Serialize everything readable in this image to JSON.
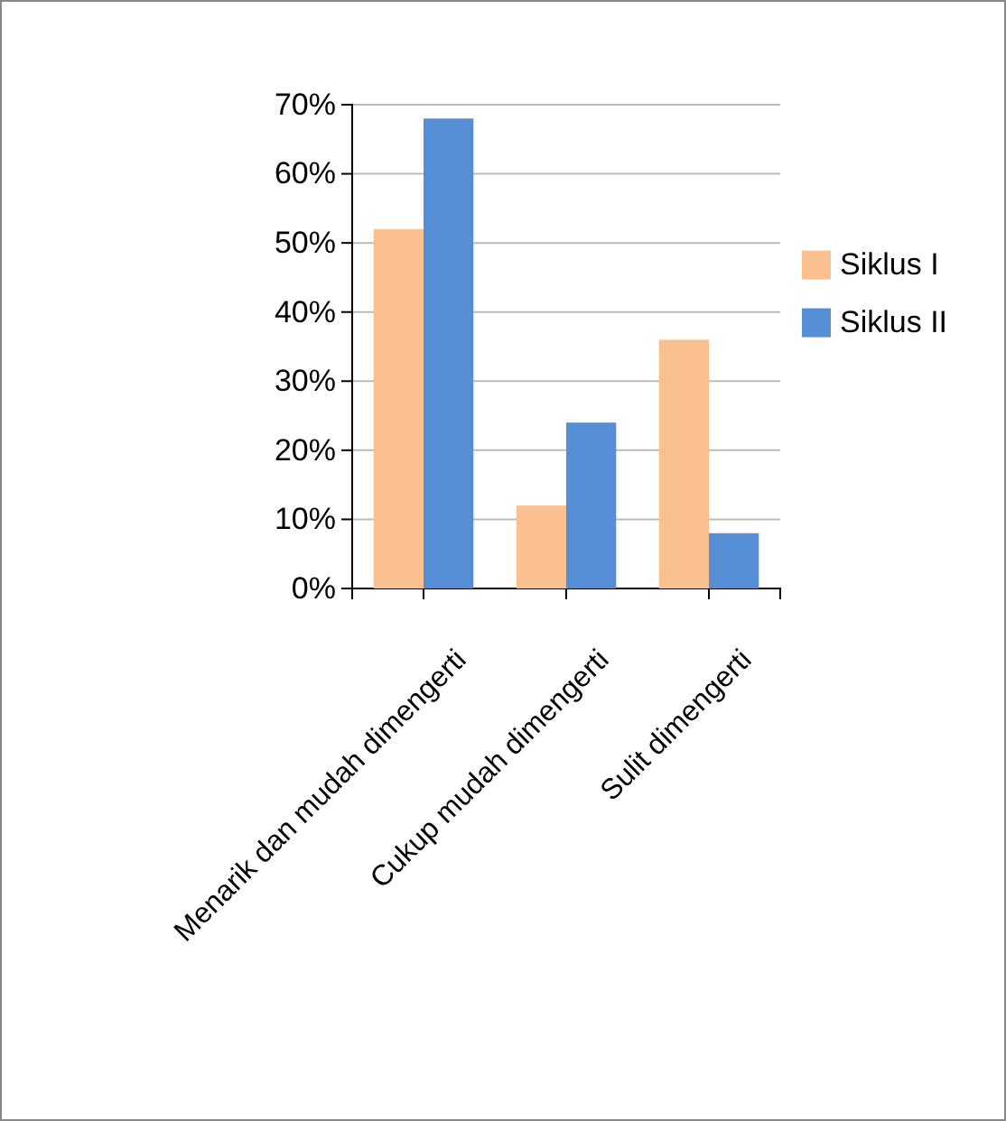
{
  "chart_data": {
    "type": "bar",
    "categories": [
      "Menarik dan mudah dimengerti",
      "Cukup mudah dimengerti",
      "Sulit dimengerti"
    ],
    "series": [
      {
        "name": "Siklus I",
        "color": "#fac090",
        "values": [
          52,
          12,
          36
        ]
      },
      {
        "name": "Siklus II",
        "color": "#558ed5",
        "values": [
          68,
          24,
          8
        ]
      }
    ],
    "ylim": [
      0,
      70
    ],
    "yticks": [
      {
        "value": 0,
        "label": "0%"
      },
      {
        "value": 10,
        "label": "10%"
      },
      {
        "value": 20,
        "label": "20%"
      },
      {
        "value": 30,
        "label": "30%"
      },
      {
        "value": 40,
        "label": "40%"
      },
      {
        "value": 50,
        "label": "50%"
      },
      {
        "value": 60,
        "label": "60%"
      },
      {
        "value": 70,
        "label": "70%"
      }
    ],
    "grid": "y",
    "legend": "right"
  }
}
